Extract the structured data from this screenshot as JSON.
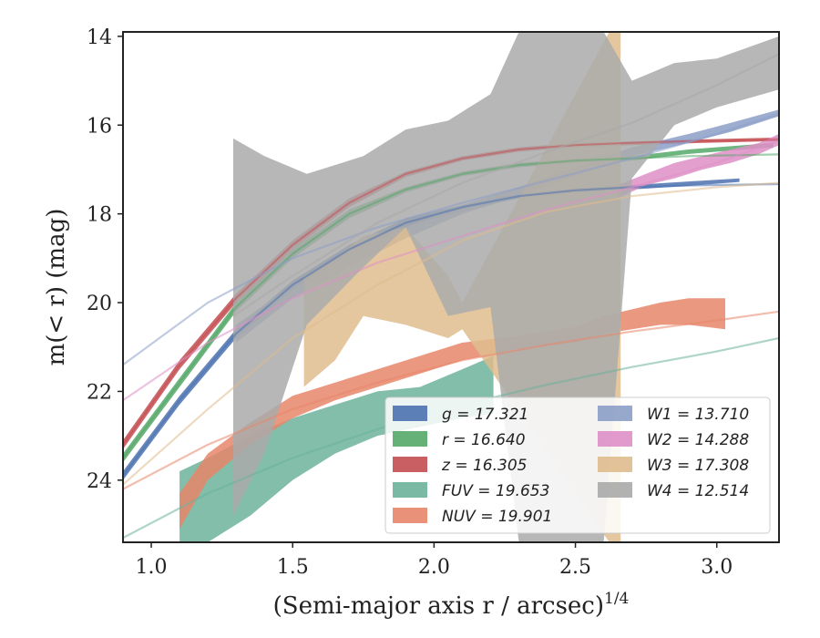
{
  "chart_data": {
    "type": "area",
    "xlabel": "(Semi-major axis r / arcsec)",
    "xlabel_exp": "1/4",
    "ylabel": "m(< r) (mag)",
    "xlim": [
      0.9,
      3.22
    ],
    "ylim": [
      25.4,
      13.9
    ],
    "y_inverted": true,
    "grid": false,
    "legend_position": "lower-right",
    "x_ticks": [
      "1.0",
      "1.5",
      "2.0",
      "2.5",
      "3.0"
    ],
    "y_ticks": [
      "14",
      "16",
      "18",
      "20",
      "22",
      "24"
    ],
    "legend": [
      {
        "label": "g = 17.321",
        "color": "#4c72b0"
      },
      {
        "label": "r = 16.640",
        "color": "#55a868"
      },
      {
        "label": "z = 16.305",
        "color": "#c44e52"
      },
      {
        "label": "FUV = 19.653",
        "color": "#6cb39a"
      },
      {
        "label": "NUV = 19.901",
        "color": "#e8866a"
      },
      {
        "label": "W1 = 13.710",
        "color": "#8c9fc8"
      },
      {
        "label": "W2 = 14.288",
        "color": "#de8fc6"
      },
      {
        "label": "W3 = 17.308",
        "color": "#dfbc8e"
      },
      {
        "label": "W4 = 12.514",
        "color": "#aaaaaa"
      }
    ],
    "series": [
      {
        "name": "g",
        "color": "#4c72b0",
        "fit": [
          [
            0.9,
            23.9
          ],
          [
            1.1,
            22.2
          ],
          [
            1.3,
            20.7
          ],
          [
            1.5,
            19.6
          ],
          [
            1.7,
            18.8
          ],
          [
            1.9,
            18.2
          ],
          [
            2.1,
            17.85
          ],
          [
            2.3,
            17.6
          ],
          [
            2.5,
            17.47
          ],
          [
            2.7,
            17.4
          ],
          [
            2.9,
            17.36
          ],
          [
            3.22,
            17.33
          ]
        ],
        "band": [
          [
            0.9,
            23.8,
            24.0
          ],
          [
            1.1,
            22.1,
            22.3
          ],
          [
            1.3,
            20.6,
            20.8
          ],
          [
            1.5,
            19.5,
            19.7
          ],
          [
            1.7,
            18.7,
            18.9
          ],
          [
            1.9,
            18.1,
            18.3
          ],
          [
            2.1,
            17.8,
            17.92
          ],
          [
            2.3,
            17.55,
            17.65
          ],
          [
            2.5,
            17.42,
            17.52
          ],
          [
            2.7,
            17.35,
            17.45
          ],
          [
            2.9,
            17.27,
            17.37
          ],
          [
            3.08,
            17.2,
            17.28
          ]
        ]
      },
      {
        "name": "r",
        "color": "#55a868",
        "fit": [
          [
            0.9,
            23.5
          ],
          [
            1.1,
            21.8
          ],
          [
            1.3,
            20.1
          ],
          [
            1.5,
            18.9
          ],
          [
            1.7,
            18.0
          ],
          [
            1.9,
            17.45
          ],
          [
            2.1,
            17.1
          ],
          [
            2.3,
            16.9
          ],
          [
            2.5,
            16.8
          ],
          [
            2.7,
            16.75
          ],
          [
            2.9,
            16.7
          ],
          [
            3.22,
            16.66
          ]
        ],
        "band": [
          [
            0.9,
            23.4,
            23.6
          ],
          [
            1.1,
            21.7,
            21.9
          ],
          [
            1.3,
            20.0,
            20.2
          ],
          [
            1.5,
            18.8,
            19.0
          ],
          [
            1.7,
            17.9,
            18.1
          ],
          [
            1.9,
            17.4,
            17.52
          ],
          [
            2.1,
            17.05,
            17.15
          ],
          [
            2.3,
            16.85,
            16.95
          ],
          [
            2.5,
            16.75,
            16.85
          ],
          [
            2.7,
            16.7,
            16.8
          ],
          [
            2.9,
            16.55,
            16.65
          ],
          [
            3.2,
            16.4,
            16.5
          ]
        ]
      },
      {
        "name": "z",
        "color": "#c44e52",
        "fit": [
          [
            0.9,
            23.2
          ],
          [
            1.1,
            21.4
          ],
          [
            1.3,
            19.9
          ],
          [
            1.5,
            18.7
          ],
          [
            1.7,
            17.75
          ],
          [
            1.9,
            17.1
          ],
          [
            2.1,
            16.75
          ],
          [
            2.3,
            16.55
          ],
          [
            2.5,
            16.45
          ],
          [
            2.7,
            16.4
          ],
          [
            2.9,
            16.36
          ],
          [
            3.22,
            16.33
          ]
        ],
        "band": [
          [
            0.9,
            23.1,
            23.3
          ],
          [
            1.1,
            21.3,
            21.5
          ],
          [
            1.3,
            19.8,
            20.0
          ],
          [
            1.5,
            18.6,
            18.8
          ],
          [
            1.7,
            17.65,
            17.85
          ],
          [
            1.9,
            17.05,
            17.17
          ],
          [
            2.1,
            16.7,
            16.8
          ],
          [
            2.3,
            16.5,
            16.6
          ],
          [
            2.5,
            16.4,
            16.5
          ],
          [
            2.7,
            16.37,
            16.45
          ],
          [
            2.9,
            16.33,
            16.41
          ],
          [
            3.22,
            16.28,
            16.36
          ]
        ]
      },
      {
        "name": "FUV",
        "color": "#6cb39a",
        "fit": [
          [
            0.9,
            25.3
          ],
          [
            1.2,
            24.3
          ],
          [
            1.5,
            23.5
          ],
          [
            1.8,
            22.85
          ],
          [
            2.1,
            22.3
          ],
          [
            2.4,
            21.85
          ],
          [
            2.7,
            21.45
          ],
          [
            3.0,
            21.1
          ],
          [
            3.22,
            20.8
          ]
        ],
        "band": [
          [
            1.1,
            23.8,
            25.4
          ],
          [
            1.2,
            23.5,
            25.4
          ],
          [
            1.35,
            23.0,
            24.8
          ],
          [
            1.5,
            22.6,
            24.0
          ],
          [
            1.65,
            22.3,
            23.4
          ],
          [
            1.8,
            22.0,
            23.0
          ],
          [
            1.95,
            21.9,
            22.8
          ],
          [
            2.1,
            21.5,
            22.6
          ],
          [
            2.21,
            21.2,
            22.5
          ]
        ]
      },
      {
        "name": "NUV",
        "color": "#e8866a",
        "fit": [
          [
            0.9,
            24.2
          ],
          [
            1.2,
            23.2
          ],
          [
            1.5,
            22.4
          ],
          [
            1.8,
            21.8
          ],
          [
            2.1,
            21.3
          ],
          [
            2.4,
            20.95
          ],
          [
            2.7,
            20.65
          ],
          [
            3.0,
            20.4
          ],
          [
            3.22,
            20.2
          ]
        ],
        "band": [
          [
            1.1,
            24.3,
            25.1
          ],
          [
            1.2,
            23.4,
            24.0
          ],
          [
            1.35,
            22.7,
            23.2
          ],
          [
            1.5,
            22.1,
            22.6
          ],
          [
            1.65,
            21.8,
            22.2
          ],
          [
            1.8,
            21.5,
            21.9
          ],
          [
            1.95,
            21.2,
            21.6
          ],
          [
            2.1,
            20.9,
            21.3
          ],
          [
            2.3,
            20.75,
            21.05
          ],
          [
            2.5,
            20.55,
            20.9
          ],
          [
            2.6,
            20.3,
            20.7
          ],
          [
            2.8,
            20.0,
            20.5
          ],
          [
            2.9,
            19.9,
            20.5
          ],
          [
            3.03,
            19.9,
            20.6
          ]
        ]
      },
      {
        "name": "W1",
        "color": "#8c9fc8",
        "fit": [
          [
            0.9,
            21.4
          ],
          [
            1.2,
            20.0
          ],
          [
            1.5,
            19.0
          ],
          [
            1.8,
            18.3
          ],
          [
            2.1,
            17.75
          ],
          [
            2.4,
            17.25
          ],
          [
            2.7,
            16.75
          ],
          [
            3.0,
            16.2
          ],
          [
            3.22,
            15.75
          ]
        ],
        "band": [
          [
            1.3,
            20.5,
            20.9
          ],
          [
            1.5,
            19.6,
            19.9
          ],
          [
            1.7,
            18.9,
            19.2
          ],
          [
            1.9,
            18.3,
            18.55
          ],
          [
            2.1,
            17.8,
            18.0
          ],
          [
            2.3,
            17.4,
            17.6
          ],
          [
            2.5,
            16.95,
            17.15
          ],
          [
            2.7,
            16.5,
            16.7
          ],
          [
            2.9,
            16.2,
            16.4
          ],
          [
            3.05,
            15.95,
            16.15
          ],
          [
            3.22,
            15.65,
            15.8
          ]
        ]
      },
      {
        "name": "W2",
        "color": "#de8fc6",
        "fit": [
          [
            0.9,
            22.2
          ],
          [
            1.2,
            20.9
          ],
          [
            1.5,
            19.9
          ],
          [
            1.8,
            19.1
          ],
          [
            2.1,
            18.5
          ],
          [
            2.4,
            17.9
          ],
          [
            2.7,
            17.4
          ],
          [
            3.0,
            16.85
          ],
          [
            3.22,
            16.35
          ]
        ],
        "band": [
          [
            2.65,
            17.35,
            17.65
          ],
          [
            2.75,
            17.1,
            17.35
          ],
          [
            2.85,
            16.85,
            17.2
          ],
          [
            2.95,
            16.7,
            17.0
          ],
          [
            3.05,
            16.55,
            16.85
          ],
          [
            3.15,
            16.4,
            16.65
          ],
          [
            3.22,
            16.2,
            16.45
          ]
        ]
      },
      {
        "name": "W3",
        "color": "#dfbc8e",
        "fit": [
          [
            0.9,
            24.1
          ],
          [
            1.2,
            22.4
          ],
          [
            1.5,
            20.8
          ],
          [
            1.8,
            19.6
          ],
          [
            2.1,
            18.6
          ],
          [
            2.4,
            17.95
          ],
          [
            2.7,
            17.6
          ],
          [
            3.0,
            17.4
          ],
          [
            3.22,
            17.3
          ]
        ],
        "band": [
          [
            1.54,
            19.4,
            21.9
          ],
          [
            1.65,
            19.0,
            21.3
          ],
          [
            1.75,
            18.5,
            20.3
          ],
          [
            1.9,
            18.3,
            20.5
          ],
          [
            2.05,
            19.4,
            20.8
          ],
          [
            2.1,
            20.0,
            20.6
          ],
          [
            2.62,
            13.9,
            25.4
          ],
          [
            2.64,
            13.9,
            25.4
          ],
          [
            2.66,
            13.9,
            25.4
          ]
        ]
      },
      {
        "name": "W4",
        "color": "#aaaaaa",
        "fit": [
          [
            1.29,
            20.3
          ],
          [
            1.5,
            19.4
          ],
          [
            1.8,
            18.2
          ],
          [
            2.1,
            17.3
          ],
          [
            2.4,
            16.6
          ],
          [
            2.7,
            15.95
          ],
          [
            3.0,
            15.1
          ],
          [
            3.22,
            14.4
          ]
        ],
        "band": [
          [
            1.29,
            16.3,
            24.8
          ],
          [
            1.4,
            16.7,
            23.4
          ],
          [
            1.55,
            17.1,
            20.5
          ],
          [
            1.75,
            16.7,
            19.2
          ],
          [
            1.9,
            16.1,
            18.3
          ],
          [
            2.05,
            15.9,
            20.3
          ],
          [
            2.2,
            15.3,
            20.1
          ],
          [
            2.3,
            13.9,
            25.4
          ],
          [
            2.45,
            13.9,
            25.4
          ],
          [
            2.6,
            13.9,
            25.4
          ],
          [
            2.7,
            15.0,
            17.2
          ],
          [
            2.85,
            14.6,
            16.0
          ],
          [
            3.0,
            14.5,
            15.6
          ],
          [
            3.22,
            14.0,
            15.2
          ]
        ]
      }
    ]
  }
}
